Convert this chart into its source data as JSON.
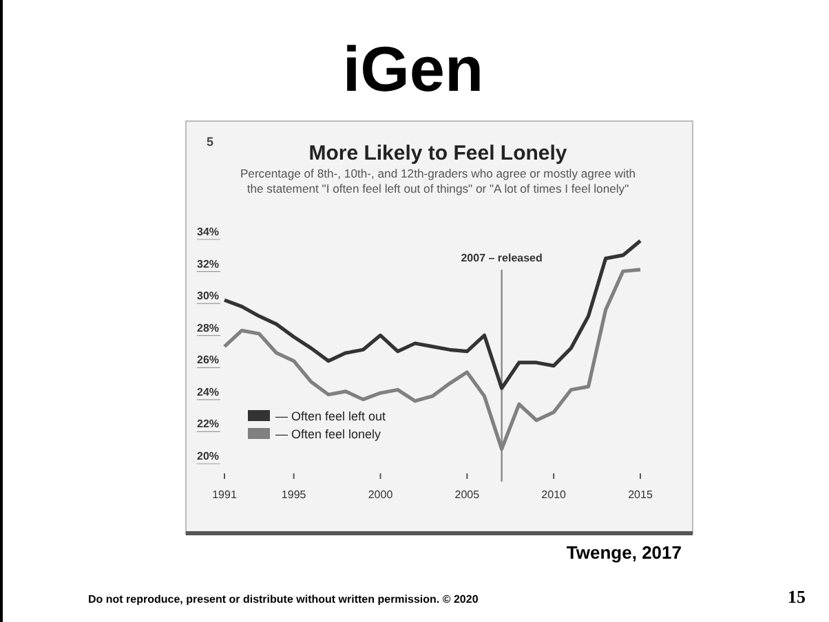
{
  "chart_data": {
    "type": "line",
    "title": "More Likely to Feel Lonely",
    "subtitle": "Percentage of 8th-, 10th-, and 12th-graders who agree or mostly agree with\nthe statement \"I often feel left out of things\" or \"A lot of times I feel lonely\"",
    "x": [
      1991,
      1992,
      1993,
      1994,
      1995,
      1996,
      1997,
      1998,
      1999,
      2000,
      2001,
      2002,
      2003,
      2004,
      2005,
      2006,
      2007,
      2008,
      2009,
      2010,
      2011,
      2012,
      2013,
      2014,
      2015
    ],
    "series": [
      {
        "name": "— Often feel left out",
        "color": "#333333",
        "values": [
          29.7,
          29.3,
          28.7,
          28.2,
          27.4,
          26.7,
          25.9,
          26.4,
          26.6,
          27.5,
          26.5,
          27.0,
          26.8,
          26.6,
          26.5,
          27.5,
          24.2,
          25.8,
          25.8,
          25.6,
          26.7,
          28.7,
          32.3,
          32.5,
          33.4
        ]
      },
      {
        "name": "— Often feel lonely",
        "color": "#808080",
        "values": [
          26.8,
          27.8,
          27.6,
          26.4,
          25.9,
          24.6,
          23.8,
          24.0,
          23.5,
          23.9,
          24.1,
          23.4,
          23.7,
          24.5,
          25.2,
          23.7,
          20.4,
          23.2,
          22.2,
          22.7,
          24.1,
          24.3,
          29.1,
          31.5,
          31.6
        ]
      }
    ],
    "xlim": [
      1991,
      2015
    ],
    "xticks": [
      1991,
      1995,
      2000,
      2005,
      2010,
      2015
    ],
    "ylim": [
      20,
      34
    ],
    "yticks": [
      {
        "value": 20,
        "label": "20%"
      },
      {
        "value": 22,
        "label": "22%"
      },
      {
        "value": 24,
        "label": "24%"
      },
      {
        "value": 26,
        "label": "26%"
      },
      {
        "value": 28,
        "label": "28%"
      },
      {
        "value": 30,
        "label": "30%"
      },
      {
        "value": 32,
        "label": "32%"
      },
      {
        "value": 34,
        "label": "34%"
      }
    ],
    "ref_lines": [
      {
        "axis": "x",
        "value": 2007,
        "label": "2007 – released",
        "color": "#888888"
      }
    ],
    "legend": "bottom left",
    "grid": false,
    "marker": "none",
    "line_style": "solid",
    "annotations": [
      "iGen",
      "5",
      "Twenge, 2017",
      "Do not reproduce, present or distribute without written permission. © 2020",
      "15"
    ]
  }
}
